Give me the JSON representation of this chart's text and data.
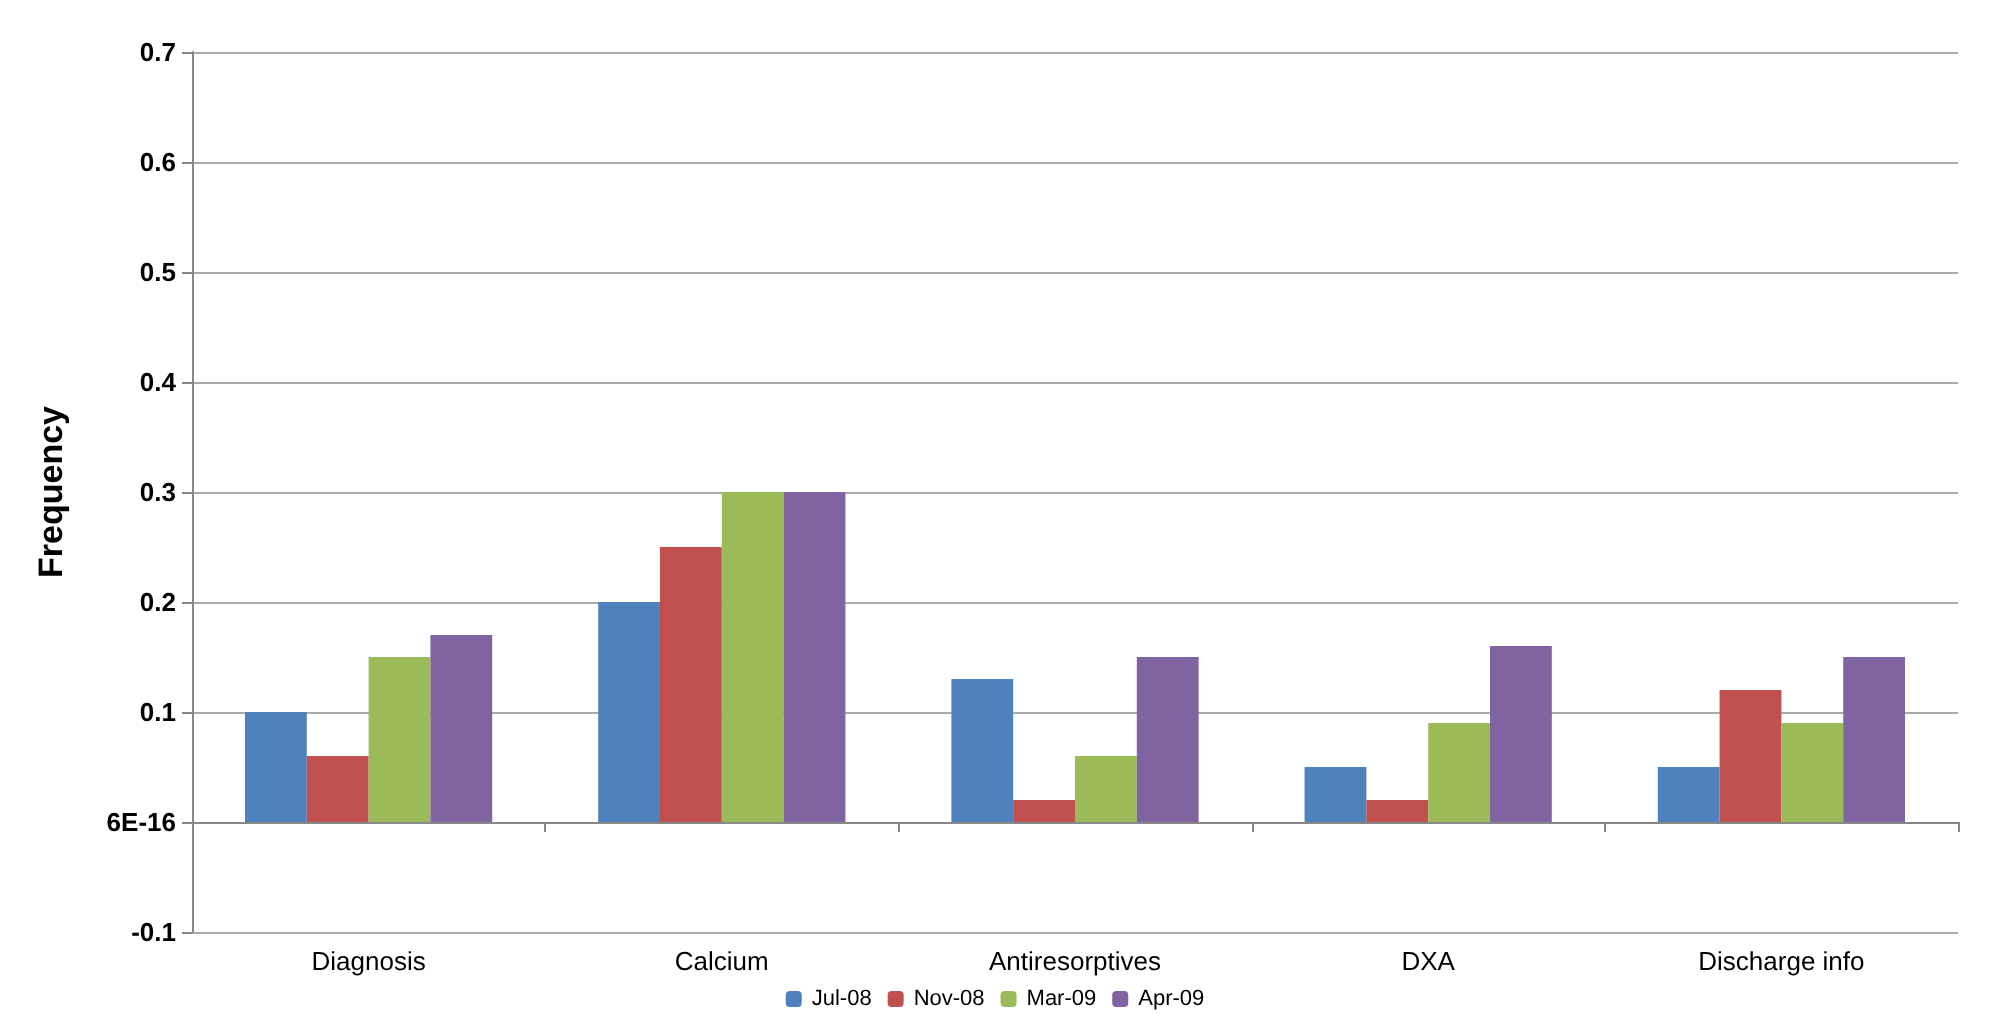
{
  "chart_data": {
    "type": "bar",
    "ylabel": "Frequency",
    "categories": [
      "Diagnosis",
      "Calcium",
      "Antiresorptives",
      "DXA",
      "Discharge info"
    ],
    "series": [
      {
        "name": "Jul-08",
        "color": "#4f81bd",
        "values": [
          0.1,
          0.2,
          0.13,
          0.05,
          0.05
        ]
      },
      {
        "name": "Nov-08",
        "color": "#c0504d",
        "values": [
          0.06,
          0.25,
          0.02,
          0.02,
          0.12
        ]
      },
      {
        "name": "Mar-09",
        "color": "#9bbb59",
        "values": [
          0.15,
          0.3,
          0.06,
          0.09,
          0.09
        ]
      },
      {
        "name": "Apr-09",
        "color": "#8064a2",
        "values": [
          0.17,
          0.3,
          0.15,
          0.16,
          0.15
        ]
      }
    ],
    "ylim": [
      -0.1,
      0.7
    ],
    "yticks": [
      -0.1,
      {
        "value": 0,
        "label": "6E-16"
      },
      0.1,
      0.2,
      0.3,
      0.4,
      0.5,
      0.6,
      0.7
    ],
    "grid": "y",
    "legend": "bottom"
  }
}
